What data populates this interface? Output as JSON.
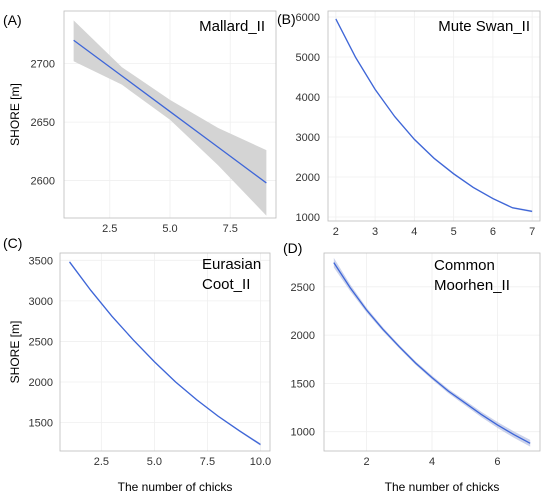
{
  "chart_data": [
    {
      "type": "line",
      "panel_label": "(A)",
      "title": "Mallard_II",
      "ylabel": "SHORE [m]",
      "xlabel": "",
      "xlim": [
        0.6,
        9.4
      ],
      "ylim": [
        2568,
        2745
      ],
      "xticks": [
        2.5,
        5.0,
        7.5
      ],
      "xtick_labels": [
        "2.5",
        "5.0",
        "7.5"
      ],
      "yticks": [
        2600,
        2650,
        2700
      ],
      "ytick_labels": [
        "2600",
        "2650",
        "2700"
      ],
      "grid": true,
      "series": [
        {
          "x": [
            1,
            3,
            5,
            7,
            9
          ],
          "y": [
            2720,
            2689.5,
            2659,
            2628.5,
            2598
          ],
          "lower": [
            2702,
            2682,
            2652,
            2613,
            2570
          ],
          "upper": [
            2737,
            2697,
            2669,
            2645,
            2626
          ]
        }
      ]
    },
    {
      "type": "line",
      "panel_label": "(B)",
      "title": "Mute Swan_II",
      "ylabel": "",
      "xlabel": "",
      "xlim": [
        1.8,
        7.2
      ],
      "ylim": [
        900,
        6150
      ],
      "xticks": [
        2,
        3,
        4,
        5,
        6,
        7
      ],
      "xtick_labels": [
        "2",
        "3",
        "4",
        "5",
        "6",
        "7"
      ],
      "yticks": [
        1000,
        2000,
        3000,
        4000,
        5000,
        6000
      ],
      "ytick_labels": [
        "1000",
        "2000",
        "3000",
        "4000",
        "5000",
        "6000"
      ],
      "grid": true,
      "series": [
        {
          "x": [
            2,
            2.5,
            3,
            3.5,
            4,
            4.5,
            5,
            5.5,
            6,
            6.5,
            7
          ],
          "y": [
            5950,
            4995,
            4190,
            3510,
            2940,
            2470,
            2080,
            1740,
            1460,
            1230,
            1140
          ],
          "lower": [
            5910,
            4960,
            4160,
            3485,
            2915,
            2445,
            2055,
            1720,
            1440,
            1210,
            1115
          ],
          "upper": [
            5990,
            5030,
            4220,
            3535,
            2965,
            2495,
            2105,
            1760,
            1480,
            1250,
            1165
          ]
        }
      ]
    },
    {
      "type": "line",
      "panel_label": "(C)",
      "title": "Eurasian\nCoot_II",
      "ylabel": "SHORE [m]",
      "xlabel": "The number of chicks",
      "xlim": [
        0.55,
        10.45
      ],
      "ylim": [
        1150,
        3590
      ],
      "xticks": [
        2.5,
        5.0,
        7.5,
        10.0
      ],
      "xtick_labels": [
        "2.5",
        "5.0",
        "7.5",
        "10.0"
      ],
      "yticks": [
        1500,
        2000,
        2500,
        3000,
        3500
      ],
      "ytick_labels": [
        "1500",
        "2000",
        "2500",
        "3000",
        "3500"
      ],
      "grid": true,
      "series": [
        {
          "x": [
            1,
            2,
            3,
            4,
            5,
            6,
            7,
            8,
            9,
            10
          ],
          "y": [
            3480,
            3130,
            2810,
            2520,
            2250,
            2000,
            1780,
            1580,
            1400,
            1230
          ],
          "lower": [
            3465,
            3117,
            2799,
            2510,
            2241,
            1991,
            1771,
            1570,
            1389,
            1215
          ],
          "upper": [
            3495,
            3143,
            2821,
            2530,
            2259,
            2009,
            1789,
            1590,
            1411,
            1245
          ]
        }
      ]
    },
    {
      "type": "line",
      "panel_label": "(D)",
      "title": "Common\nMoorhen_II",
      "ylabel": "",
      "xlabel": "The number of chicks",
      "xlim": [
        0.7,
        7.3
      ],
      "ylim": [
        800,
        2850
      ],
      "xticks": [
        2,
        4,
        6
      ],
      "xtick_labels": [
        "2",
        "4",
        "6"
      ],
      "yticks": [
        1000,
        1500,
        2000,
        2500
      ],
      "ytick_labels": [
        "1000",
        "1500",
        "2000",
        "2500"
      ],
      "grid": true,
      "series": [
        {
          "x": [
            1,
            1.5,
            2,
            2.5,
            3,
            3.5,
            4,
            4.5,
            5,
            5.5,
            6,
            6.5,
            7
          ],
          "y": [
            2750,
            2490,
            2260,
            2060,
            1880,
            1710,
            1560,
            1420,
            1300,
            1180,
            1070,
            970,
            880
          ],
          "lower": [
            2700,
            2455,
            2235,
            2040,
            1862,
            1692,
            1540,
            1398,
            1275,
            1152,
            1040,
            937,
            845
          ],
          "upper": [
            2800,
            2525,
            2285,
            2080,
            1898,
            1728,
            1580,
            1442,
            1325,
            1208,
            1100,
            1003,
            915
          ]
        }
      ]
    }
  ]
}
